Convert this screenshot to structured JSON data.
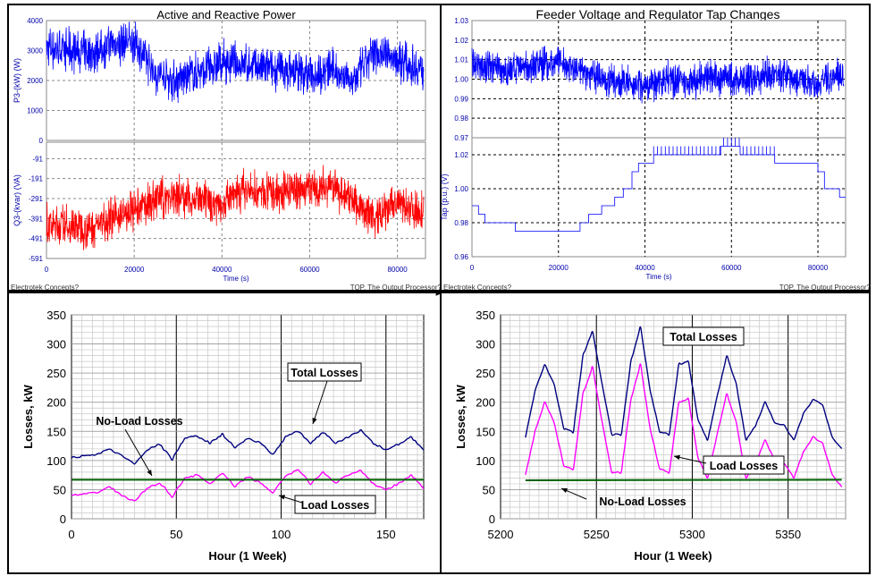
{
  "chart_data": [
    {
      "id": "p1",
      "type": "line",
      "title": "Active and Reactive Power",
      "xlabel": "Time (s)",
      "xlim": [
        0,
        86400
      ],
      "xticks": [
        "0",
        "20000",
        "40000",
        "60000",
        "80000"
      ],
      "footer_left": "Electrotek Concepts?",
      "footer_right": "TOP, The Output Processor?",
      "grid": true,
      "subplots": [
        {
          "ylabel": "P3-(kW) (W)",
          "ylim": [
            0,
            4000
          ],
          "yticks": [
            "0",
            "1000",
            "2000",
            "3000",
            "4000"
          ],
          "series": [
            {
              "color": "#0000ff",
              "style": "noisy",
              "x": [
                0,
                5000,
                10000,
                15000,
                20000,
                25000,
                30000,
                35000,
                40000,
                45000,
                50000,
                55000,
                60000,
                65000,
                70000,
                75000,
                80000,
                85000
              ],
              "y": [
                3100,
                3000,
                2900,
                3200,
                3300,
                2200,
                2000,
                2300,
                2600,
                2500,
                2400,
                2300,
                2200,
                2400,
                2000,
                3000,
                2700,
                2400
              ]
            }
          ]
        },
        {
          "ylabel": "Q3-(kvar) (VA)",
          "ylim": [
            -591,
            -9
          ],
          "yticks": [
            "-591",
            "-491",
            "-391",
            "-291",
            "-191",
            "-91"
          ],
          "series": [
            {
              "color": "#ff0000",
              "style": "noisy",
              "x": [
                0,
                5000,
                10000,
                15000,
                20000,
                25000,
                30000,
                35000,
                40000,
                45000,
                50000,
                55000,
                60000,
                65000,
                70000,
                75000,
                80000,
                85000
              ],
              "y": [
                -420,
                -430,
                -440,
                -380,
                -360,
                -290,
                -270,
                -300,
                -320,
                -250,
                -270,
                -250,
                -240,
                -230,
                -300,
                -400,
                -310,
                -350
              ]
            }
          ]
        }
      ]
    },
    {
      "id": "p2",
      "type": "line",
      "title": "Feeder Voltage and Regulator Tap Changes",
      "xlabel": "Time (s)",
      "xlim": [
        0,
        86400
      ],
      "xticks": [
        "0",
        "20000",
        "40000",
        "60000",
        "80000"
      ],
      "footer_left": "Electrotek Concepts?",
      "footer_right": "TOP, The Output Processor?",
      "grid": true,
      "subplots": [
        {
          "ylabel": "",
          "ylim": [
            0.97,
            1.03
          ],
          "yticks": [
            "0.97",
            "0.98",
            "0.99",
            "1.00",
            "1.01",
            "1.02",
            "1.03"
          ],
          "series": [
            {
              "color": "#0000ff",
              "style": "noisy",
              "x": [
                0,
                5000,
                10000,
                15000,
                20000,
                25000,
                30000,
                35000,
                40000,
                45000,
                50000,
                55000,
                60000,
                65000,
                70000,
                75000,
                80000,
                85000
              ],
              "y": [
                1.008,
                1.006,
                1.004,
                1.008,
                1.009,
                1.004,
                1.0,
                0.998,
                0.997,
                1.0,
                0.998,
                1.001,
                0.999,
                1.0,
                1.004,
                1.0,
                0.998,
                1.002
              ]
            }
          ]
        },
        {
          "ylabel": "Tap (p.u.) (V)",
          "ylim": [
            0.96,
            1.03
          ],
          "yticks": [
            "0.96",
            "0.98",
            "1.00",
            "1.02"
          ],
          "series": [
            {
              "color": "#0000ff",
              "style": "step",
              "x": [
                0,
                1500,
                3000,
                10000,
                25000,
                27000,
                30000,
                33000,
                35000,
                37000,
                38500,
                40000,
                42000,
                50000,
                55000,
                57500,
                60000,
                62000,
                66000,
                70000,
                80000,
                81500,
                85000,
                86400
              ],
              "y": [
                0.99,
                0.985,
                0.98,
                0.975,
                0.98,
                0.985,
                0.99,
                0.995,
                1.0,
                1.01,
                1.015,
                1.015,
                1.02,
                1.02,
                1.02,
                1.025,
                1.025,
                1.02,
                1.02,
                1.015,
                1.01,
                1.0,
                0.995,
                0.995
              ]
            }
          ]
        }
      ]
    },
    {
      "id": "p3",
      "type": "line",
      "title": "",
      "xlabel": "Hour (1 Week)",
      "ylabel": "Losses, kW",
      "xlim": [
        0,
        168
      ],
      "ylim": [
        0,
        350
      ],
      "xticks": [
        "0",
        "50",
        "100",
        "150"
      ],
      "yticks": [
        "0",
        "50",
        "100",
        "150",
        "200",
        "250",
        "300",
        "350"
      ],
      "grid": true,
      "series": [
        {
          "name": "Total Losses",
          "color": "#000080",
          "x": [
            0,
            6,
            12,
            18,
            24,
            30,
            36,
            42,
            48,
            54,
            60,
            66,
            72,
            78,
            84,
            90,
            96,
            102,
            108,
            114,
            120,
            126,
            132,
            138,
            144,
            150,
            156,
            162,
            168
          ],
          "y": [
            105,
            108,
            110,
            120,
            108,
            95,
            118,
            128,
            102,
            138,
            142,
            130,
            145,
            122,
            138,
            130,
            110,
            140,
            150,
            130,
            148,
            130,
            140,
            152,
            130,
            118,
            128,
            140,
            118
          ]
        },
        {
          "name": "Load Losses",
          "color": "#ff00ff",
          "x": [
            0,
            6,
            12,
            18,
            24,
            30,
            36,
            42,
            48,
            54,
            60,
            66,
            72,
            78,
            84,
            90,
            96,
            102,
            108,
            114,
            120,
            126,
            132,
            138,
            144,
            150,
            156,
            162,
            168
          ],
          "y": [
            40,
            42,
            45,
            55,
            40,
            30,
            52,
            62,
            38,
            70,
            75,
            60,
            78,
            55,
            72,
            62,
            45,
            72,
            85,
            60,
            80,
            62,
            75,
            82,
            60,
            50,
            60,
            75,
            52
          ]
        },
        {
          "name": "No-Load Losses",
          "color": "#006000",
          "x": [
            0,
            168
          ],
          "y": [
            67,
            67
          ]
        }
      ],
      "annotations": [
        "Total Losses",
        "No-Load Losses",
        "Load Losses"
      ]
    },
    {
      "id": "p4",
      "type": "line",
      "title": "",
      "xlabel": "Hour (1 Week)",
      "ylabel": "Losses, kW",
      "xlim": [
        5200,
        5380
      ],
      "ylim": [
        0,
        350
      ],
      "xticks": [
        "5200",
        "5250",
        "5300",
        "5350"
      ],
      "yticks": [
        "0",
        "50",
        "100",
        "150",
        "200",
        "250",
        "300",
        "350"
      ],
      "grid": true,
      "series": [
        {
          "name": "Total Losses",
          "color": "#000080",
          "x": [
            5213,
            5218,
            5223,
            5228,
            5233,
            5238,
            5243,
            5248,
            5253,
            5258,
            5263,
            5268,
            5273,
            5278,
            5283,
            5288,
            5293,
            5298,
            5303,
            5308,
            5313,
            5318,
            5323,
            5328,
            5333,
            5338,
            5343,
            5348,
            5353,
            5358,
            5363,
            5368,
            5373,
            5378
          ],
          "y": [
            140,
            220,
            265,
            230,
            155,
            150,
            280,
            322,
            230,
            145,
            145,
            270,
            330,
            220,
            150,
            145,
            265,
            270,
            170,
            135,
            210,
            280,
            230,
            135,
            160,
            200,
            165,
            160,
            135,
            180,
            205,
            195,
            140,
            120
          ]
        },
        {
          "name": "Load Losses",
          "color": "#ff00ff",
          "x": [
            5213,
            5218,
            5223,
            5228,
            5233,
            5238,
            5243,
            5248,
            5253,
            5258,
            5263,
            5268,
            5273,
            5278,
            5283,
            5288,
            5293,
            5298,
            5303,
            5308,
            5313,
            5318,
            5323,
            5328,
            5333,
            5338,
            5343,
            5348,
            5353,
            5358,
            5363,
            5368,
            5373,
            5378
          ],
          "y": [
            75,
            150,
            200,
            165,
            90,
            85,
            215,
            260,
            165,
            80,
            80,
            205,
            265,
            155,
            85,
            80,
            200,
            205,
            105,
            70,
            145,
            215,
            165,
            70,
            95,
            135,
            100,
            95,
            70,
            115,
            140,
            130,
            75,
            55
          ]
        },
        {
          "name": "No-Load Losses",
          "color": "#006000",
          "x": [
            5213,
            5378
          ],
          "y": [
            66,
            67
          ]
        }
      ],
      "annotations": [
        "Total Losses",
        "Load Losses",
        "No-Load Losses"
      ]
    }
  ]
}
